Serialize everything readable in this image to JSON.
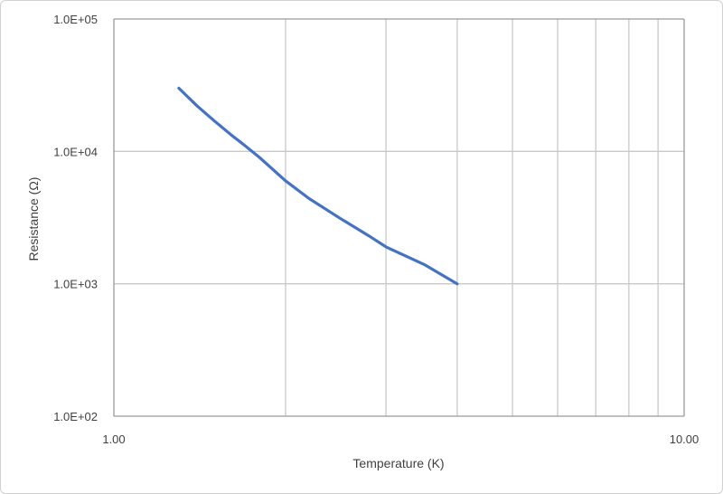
{
  "chart_data": {
    "type": "line",
    "title": "",
    "xlabel": "Temperature (K)",
    "ylabel": "Resistance  (Ω)",
    "x_scale": "log",
    "y_scale": "log",
    "xlim": [
      1,
      10
    ],
    "ylim": [
      100,
      100000
    ],
    "x_tick_labels": [
      "1.00",
      "10.00"
    ],
    "y_tick_labels": [
      "1.0E+02",
      "1.0E+03",
      "1.0E+04",
      "1.0E+05"
    ],
    "grid": true,
    "series": [
      {
        "color": "#4472c4",
        "x": [
          1.3,
          1.4,
          1.5,
          1.6,
          1.7,
          1.8,
          2.0,
          2.2,
          2.5,
          2.8,
          3.0,
          3.5,
          4.0
        ],
        "y": [
          30000,
          22000,
          17000,
          13500,
          11000,
          9000,
          6000,
          4400,
          3100,
          2300,
          1900,
          1400,
          1000
        ]
      }
    ]
  }
}
